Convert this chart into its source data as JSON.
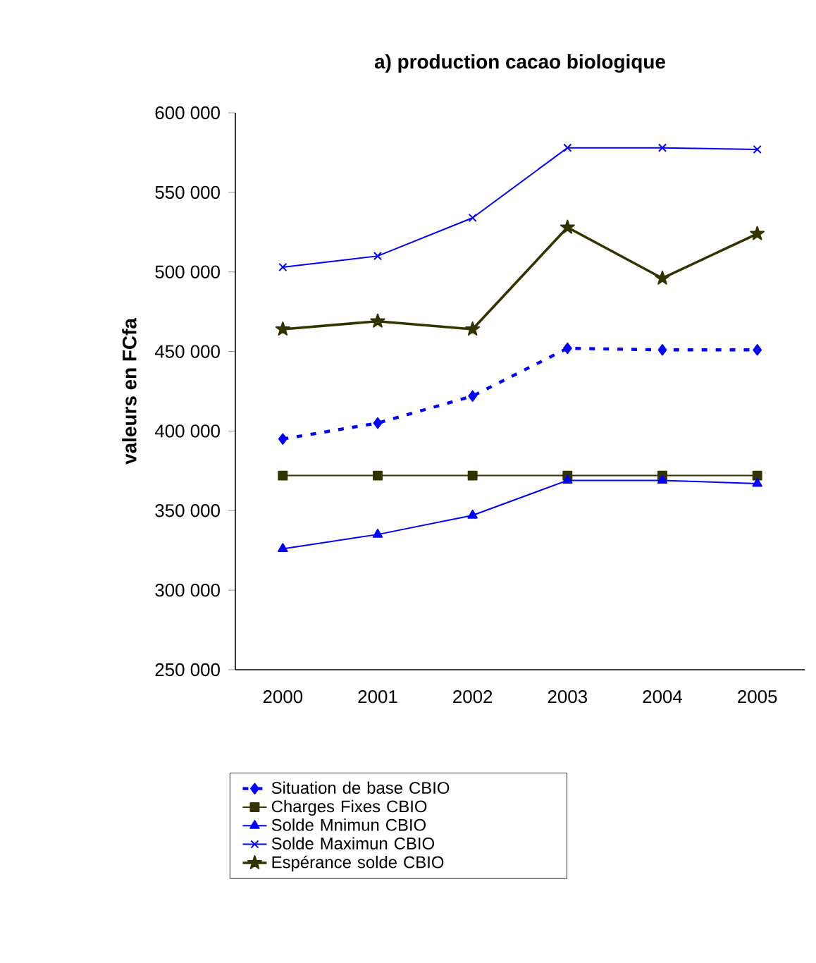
{
  "chart_data": {
    "type": "line",
    "title": "a) production cacao biologique",
    "ylabel": "valeurs en FCfa",
    "categories": [
      "2000",
      "2001",
      "2002",
      "2003",
      "2004",
      "2005"
    ],
    "ylim": [
      250000,
      600000
    ],
    "yticks": [
      {
        "value": 250000,
        "label": "250 000"
      },
      {
        "value": 300000,
        "label": "300 000"
      },
      {
        "value": 350000,
        "label": "350 000"
      },
      {
        "value": 400000,
        "label": "400 000"
      },
      {
        "value": 450000,
        "label": "450 000"
      },
      {
        "value": 500000,
        "label": "500 000"
      },
      {
        "value": 550000,
        "label": "550 000"
      },
      {
        "value": 600000,
        "label": "600 000"
      }
    ],
    "grid": false,
    "legend": "bottom",
    "series": [
      {
        "name": "Situation de base CBIO",
        "color": "#0000ff",
        "marker": "diamond",
        "line_style": "dashed",
        "values": [
          395000,
          405000,
          422000,
          452000,
          451000,
          451000
        ]
      },
      {
        "name": "Charges Fixes CBIO",
        "color": "#333300",
        "marker": "square",
        "line_style": "solid",
        "values": [
          372000,
          372000,
          372000,
          372000,
          372000,
          372000
        ]
      },
      {
        "name": "Solde Mnimun CBIO",
        "color": "#0000ff",
        "marker": "triangle",
        "line_style": "solid",
        "values": [
          326000,
          335000,
          347000,
          369000,
          369000,
          367000
        ]
      },
      {
        "name": "Solde Maximun CBIO",
        "color": "#0000ff",
        "marker": "cross",
        "line_style": "solid",
        "values": [
          503000,
          510000,
          534000,
          578000,
          578000,
          577000
        ]
      },
      {
        "name": "Espérance solde CBIO",
        "color": "#333300",
        "marker": "star",
        "line_style": "solid",
        "values": [
          464000,
          469000,
          464000,
          528000,
          496000,
          524000
        ]
      }
    ]
  }
}
